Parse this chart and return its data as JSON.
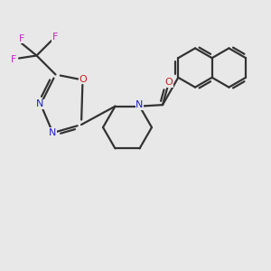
{
  "background_color": "#e8e8e8",
  "bond_color": "#333333",
  "nitrogen_color": "#2222cc",
  "oxygen_color": "#cc2222",
  "fluorine_color": "#cc22cc",
  "line_width": 1.6,
  "figsize": [
    3.0,
    3.0
  ],
  "dpi": 100,
  "xlim": [
    0,
    10
  ],
  "ylim": [
    0,
    10
  ]
}
